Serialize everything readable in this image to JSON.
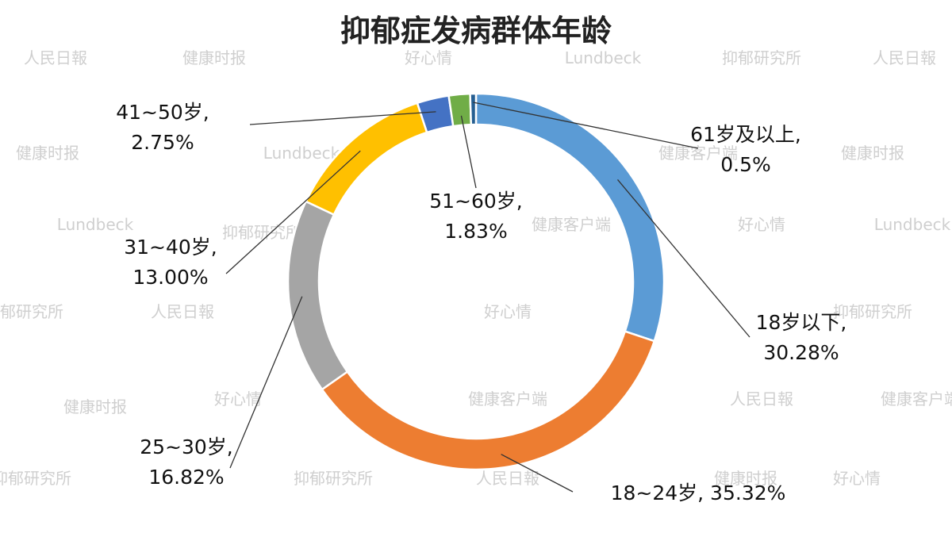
{
  "chart_data": {
    "type": "pie",
    "donut": true,
    "title": "抑郁症发病群体年龄",
    "slices": [
      {
        "category": "18岁以下",
        "value": 30.28,
        "label_lines": [
          "18岁以下,",
          "30.28%"
        ],
        "color": "#5b9bd5"
      },
      {
        "category": "18~24岁",
        "value": 35.32,
        "label_lines": [
          "18~24岁, 35.32%"
        ],
        "color": "#ed7d31"
      },
      {
        "category": "25~30岁",
        "value": 16.82,
        "label_lines": [
          "25~30岁,",
          "16.82%"
        ],
        "color": "#a5a5a5"
      },
      {
        "category": "31~40岁",
        "value": 13.0,
        "label_lines": [
          "31~40岁,",
          "13.00%"
        ],
        "color": "#ffc000"
      },
      {
        "category": "41~50岁",
        "value": 2.75,
        "label_lines": [
          "41~50岁,",
          "2.75%"
        ],
        "color": "#4472c4"
      },
      {
        "category": "51~60岁",
        "value": 1.83,
        "label_lines": [
          "51~60岁,",
          "1.83%"
        ],
        "color": "#70ad47"
      },
      {
        "category": "61岁及以上",
        "value": 0.5,
        "label_lines": [
          "61岁及以上,",
          "0.5%"
        ],
        "color": "#255e91"
      }
    ],
    "legend": "none"
  },
  "watermarks": [
    "人民日報",
    "健康客户端",
    "健康时报",
    "好心情",
    "抑郁研究所",
    "Lundbeck"
  ]
}
